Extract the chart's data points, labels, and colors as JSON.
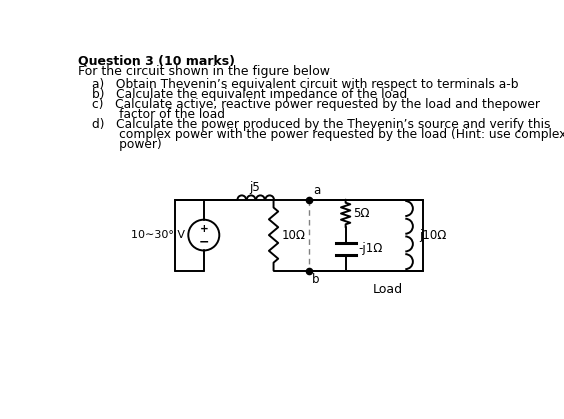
{
  "title": "Question 3 (10 marks)",
  "subtitle": "For the circuit shown in the figure below",
  "item_a": "a)   Obtain Thevenin’s equivalent circuit with respect to terminals a-b",
  "item_b": "b)   Calculate the equivalent impedance of the load",
  "item_c1": "c)   Calculate active, reactive power requested by the load and thepower",
  "item_c2": "       factor of the load",
  "item_d1": "d)   Calculate the power produced by the Thevenin’s source and verify this",
  "item_d2": "       complex power with the power requested by the load (Hint: use complex",
  "item_d3": "       power)",
  "source_label": "10∼30° V",
  "r1_label": "10Ω",
  "l1_label": "j5",
  "r_load_label": "5Ω",
  "c_load_label": "-j1Ω",
  "l_load_label": "j10Ω",
  "load_label": "Load",
  "terminal_a": "a",
  "terminal_b": "b",
  "bg_color": "#ffffff",
  "text_color": "#000000"
}
